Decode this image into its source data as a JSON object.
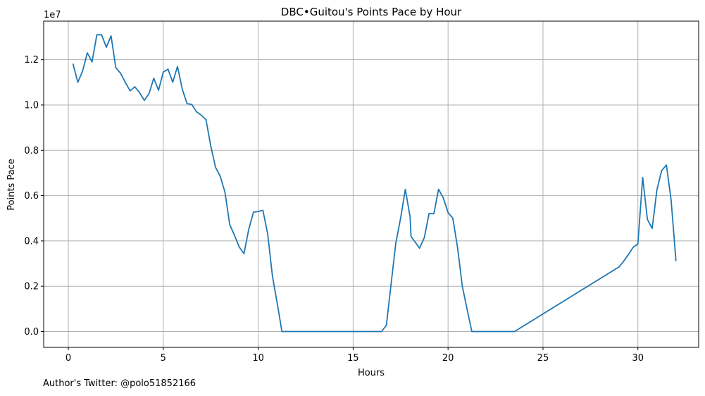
{
  "footnote": "Author's Twitter: @polo51852166",
  "chart_data": {
    "type": "line",
    "title": "DBC•Guitou's Points Pace by Hour",
    "xlabel": "Hours",
    "ylabel": "Points Pace",
    "y_offset_label": "1e7",
    "xlim": [
      -1.3,
      33.2
    ],
    "ylim": [
      -0.07,
      1.37
    ],
    "x_ticks": [
      0,
      5,
      10,
      15,
      20,
      25,
      30
    ],
    "x_tick_labels": [
      "0",
      "5",
      "10",
      "15",
      "20",
      "25",
      "30"
    ],
    "y_ticks": [
      0,
      0.2,
      0.4,
      0.6,
      0.8,
      1.0,
      1.2
    ],
    "y_tick_labels": [
      "0.0",
      "0.2",
      "0.4",
      "0.6",
      "0.8",
      "1.0",
      "1.2"
    ],
    "grid": true,
    "line_color": "#1f77b4",
    "series": [
      {
        "x": [
          0.25,
          0.5,
          0.75,
          1.0,
          1.25,
          1.5,
          1.75,
          2.0,
          2.25,
          2.5,
          2.75,
          3.0,
          3.25,
          3.5,
          3.75,
          4.0,
          4.25,
          4.5,
          4.75,
          5.0,
          5.25,
          5.5,
          5.75,
          6.0,
          6.25,
          6.5,
          6.75,
          7.0,
          7.25,
          7.5,
          7.75,
          8.0,
          8.25,
          8.5,
          8.75,
          9.0,
          9.25,
          9.5,
          9.75,
          10.0,
          10.25,
          10.5,
          10.75,
          11.0,
          11.25,
          16.5,
          16.75,
          17.0,
          17.25,
          17.5,
          17.75,
          18.0,
          18.05,
          18.5,
          18.75,
          19.0,
          19.25,
          19.5,
          19.75,
          20.0,
          20.25,
          20.5,
          20.75,
          21.0,
          21.25,
          23.5,
          29.0,
          29.25,
          29.5,
          29.75,
          30.0,
          30.25,
          30.5,
          30.75,
          31.0,
          31.25,
          31.5,
          31.75,
          32.0
        ],
        "y": [
          1.18,
          1.1,
          1.15,
          1.23,
          1.19,
          1.31,
          1.31,
          1.255,
          1.305,
          1.165,
          1.14,
          1.1,
          1.062,
          1.08,
          1.055,
          1.02,
          1.05,
          1.118,
          1.065,
          1.145,
          1.158,
          1.1,
          1.17,
          1.07,
          1.006,
          1.002,
          0.97,
          0.955,
          0.935,
          0.82,
          0.725,
          0.685,
          0.615,
          0.472,
          0.425,
          0.373,
          0.344,
          0.45,
          0.527,
          0.53,
          0.535,
          0.43,
          0.245,
          0.125,
          0.0,
          0.0,
          0.028,
          0.21,
          0.39,
          0.5,
          0.628,
          0.505,
          0.42,
          0.368,
          0.415,
          0.521,
          0.52,
          0.628,
          0.59,
          0.525,
          0.5,
          0.37,
          0.2,
          0.1,
          0.0,
          0.0,
          0.285,
          0.31,
          0.34,
          0.372,
          0.387,
          0.68,
          0.495,
          0.455,
          0.625,
          0.71,
          0.735,
          0.58,
          0.313
        ]
      }
    ]
  }
}
